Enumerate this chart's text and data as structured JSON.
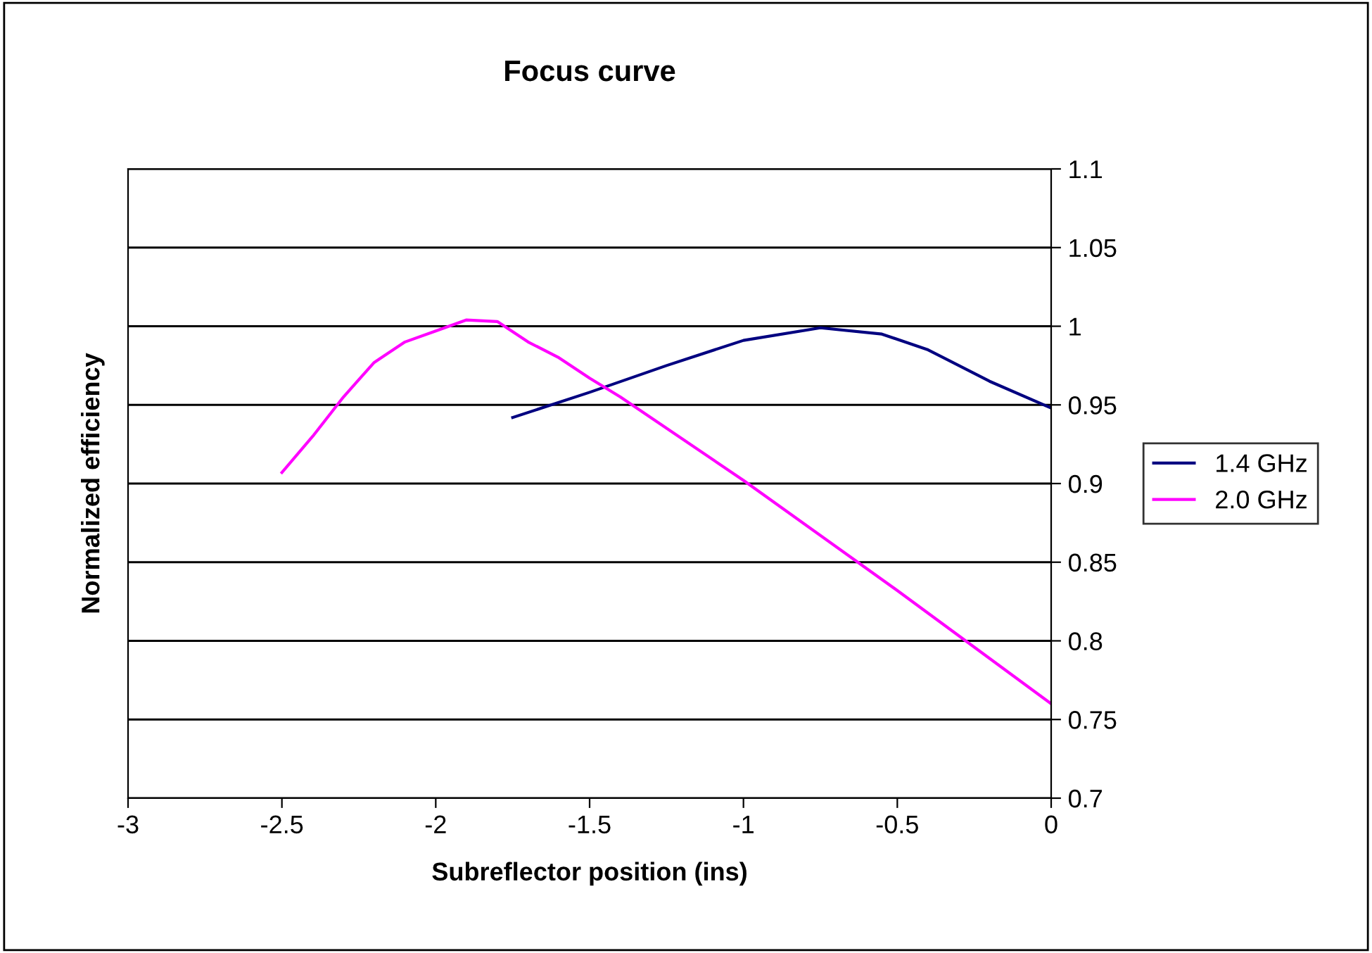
{
  "chart_data": {
    "type": "line",
    "title": "Focus curve",
    "xlabel": "Subreflector position (ins)",
    "ylabel": "Normalized efficiency",
    "xlim": [
      -3,
      0
    ],
    "xticks": [
      -3,
      -2.5,
      -2,
      -1.5,
      -1,
      -0.5,
      0
    ],
    "ylim": [
      0.7,
      1.1
    ],
    "yticks": [
      0.7,
      0.75,
      0.8,
      0.85,
      0.9,
      0.95,
      1,
      1.05,
      1.1
    ],
    "grid": "y",
    "legend": "right",
    "marker": "none",
    "line_style": "solid",
    "series": [
      {
        "name": "1.4 GHz",
        "color": "#000080",
        "x": [
          -1.75,
          -1.5,
          -1.25,
          -1.0,
          -0.75,
          -0.55,
          -0.4,
          -0.2,
          0
        ],
        "values": [
          0.942,
          0.958,
          0.975,
          0.991,
          0.999,
          0.995,
          0.985,
          0.965,
          0.948
        ]
      },
      {
        "name": "2.0 GHz",
        "color": "#ff00ff",
        "x": [
          -2.5,
          -2.4,
          -2.3,
          -2.2,
          -2.1,
          -2.0,
          -1.9,
          -1.8,
          -1.7,
          -1.6,
          -1.5,
          -1.4,
          -1.0,
          -0.5,
          0
        ],
        "values": [
          0.907,
          0.93,
          0.955,
          0.977,
          0.99,
          0.997,
          1.004,
          1.003,
          0.99,
          0.98,
          0.967,
          0.955,
          0.902,
          0.832,
          0.76
        ]
      }
    ]
  }
}
